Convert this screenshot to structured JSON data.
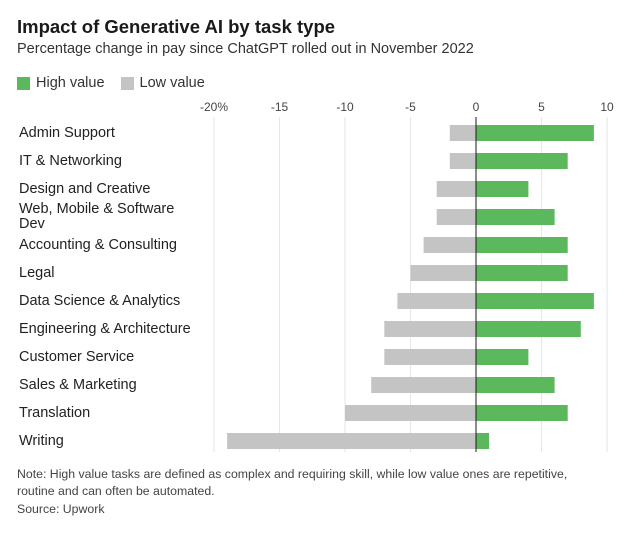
{
  "header": {
    "title": "Impact of Generative AI by task type",
    "subtitle": "Percentage change in pay since ChatGPT rolled out in November 2022"
  },
  "colors": {
    "high": "#5cb85c",
    "low": "#c4c4c4",
    "grid": "#e6e6e6",
    "zero": "#1a1a1a"
  },
  "legend": [
    {
      "label": "High value",
      "color": "#5cb85c"
    },
    {
      "label": "Low value",
      "color": "#c4c4c4"
    }
  ],
  "chart_data": {
    "type": "bar",
    "orientation": "horizontal",
    "categories": [
      [
        "Admin Support"
      ],
      [
        "IT & Networking"
      ],
      [
        "Design and Creative"
      ],
      [
        "Web, Mobile & Software",
        "Dev"
      ],
      [
        "Accounting & Consulting"
      ],
      [
        "Legal"
      ],
      [
        "Data Science & Analytics"
      ],
      [
        "Engineering & Architecture"
      ],
      [
        "Customer Service"
      ],
      [
        "Sales & Marketing"
      ],
      [
        "Translation"
      ],
      [
        "Writing"
      ]
    ],
    "series": [
      {
        "name": "High value",
        "values": [
          9,
          7,
          4,
          6,
          7,
          7,
          9,
          8,
          4,
          6,
          7,
          1
        ]
      },
      {
        "name": "Low value",
        "values": [
          -2,
          -2,
          -3,
          -3,
          -4,
          -5,
          -6,
          -7,
          -7,
          -8,
          -10,
          -19
        ]
      }
    ],
    "xticks": [
      -20,
      -15,
      -10,
      -5,
      0,
      5,
      10
    ],
    "xtick_labels": [
      "-20%",
      "-15",
      "-10",
      "-5",
      "0",
      "5",
      "10"
    ],
    "xlim": [
      -20,
      10
    ],
    "grid": true,
    "legend_position": "top-left"
  },
  "footer": {
    "note": "Note: High value tasks are defined as complex and requiring skill, while low value ones are repetitive, routine and can often be automated.",
    "source": "Source: Upwork"
  }
}
